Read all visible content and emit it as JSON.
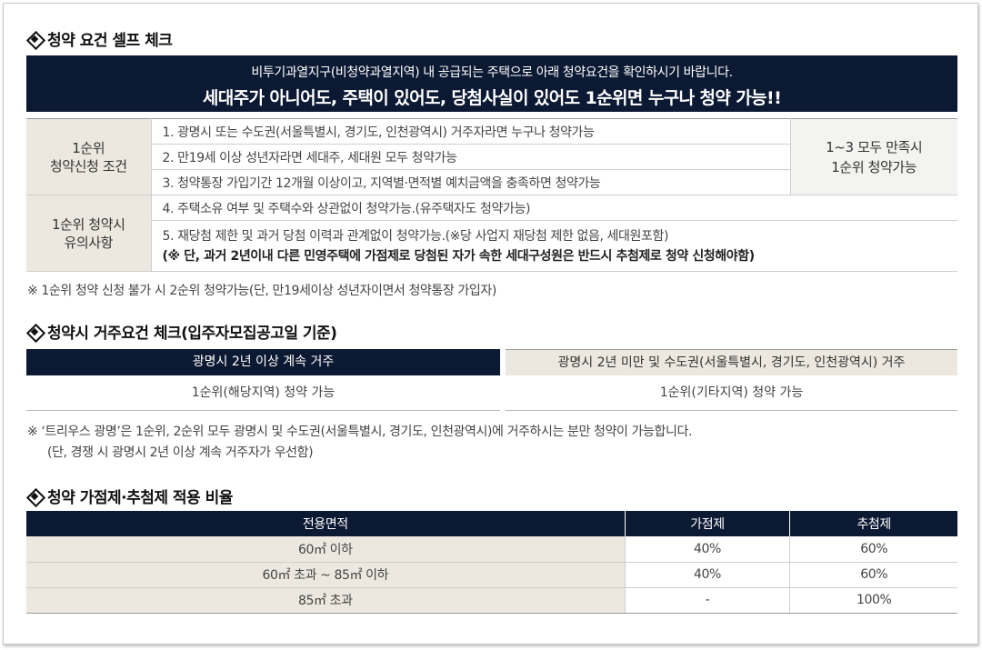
{
  "section1": {
    "title": "청약 요건 셀프 체크",
    "banner_line1": "비투기과열지구(비청약과열지역) 내 공급되는 주택으로 아래 청약요건을 확인하시기 바랍니다.",
    "banner_line2": "세대주가 아니어도, 주택이 있어도, 당첨사실이 있어도 1순위면 누구나 청약 가능!!",
    "condition_head_1": "1순위",
    "condition_head_2": "청약신청 조건",
    "conditions": [
      "1. 광명시 또는 수도권(서울특별시, 경기도, 인천광역시) 거주자라면 누구나 청약가능",
      "2. 만19세 이상 성년자라면 세대주, 세대원 모두 청약가능",
      "3. 청약통장 가입기간 12개월 이상이고, 지역별·면적별 예치금액을 충족하면 청약가능"
    ],
    "side_1": "1~3 모두 만족시",
    "side_2": "1순위 청약가능",
    "caution_head_1": "1순위 청약시",
    "caution_head_2": "유의사항",
    "cautions": [
      "4. 주택소유 여부 및 주택수와 상관없이 청약가능.(유주택자도 청약가능)",
      "5. 재당첨 제한 및 과거 당첨 이력과 관계없이 청약가능.(※당 사업지 재당첨 제한 없음, 세대원포함)"
    ],
    "caution_bold": "(※ 단, 과거 2년이내 다른 민영주택에 가점제로 당첨된 자가 속한 세대구성원은 반드시 추첨제로 청약 신청해야함)",
    "note": "※ 1순위 청약 신청 불가 시 2순위 청약가능(단, 만19세이상 성년자이면서 청약통장 가입자)"
  },
  "section2": {
    "title": "청약시 거주요건 체크(입주자모집공고일 기준)",
    "col1_head": "광명시 2년 이상 계속 거주",
    "col2_head": "광명시 2년 미만 및 수도권(서울특별시, 경기도, 인천광역시) 거주",
    "col1_value": "1순위(해당지역) 청약 가능",
    "col2_value": "1순위(기타지역) 청약 가능",
    "note_1": "※ ‘트리우스 광명’은 1순위, 2순위 모두 광명시 및 수도권(서울특별시, 경기도, 인천광역시)에 거주하시는 분만 청약이 가능합니다.",
    "note_2": "(단, 경쟁 시 광명시 2년 이상 계속 거주자가 우선함)"
  },
  "section3": {
    "title": "청약 가점제·추첨제 적용 비율",
    "headers": [
      "전용면적",
      "가점제",
      "추첨제"
    ],
    "rows": [
      [
        "60㎡ 이하",
        "40%",
        "60%"
      ],
      [
        "60㎡ 초과 ~ 85㎡ 이하",
        "40%",
        "60%"
      ],
      [
        "85㎡ 초과",
        "-",
        "100%"
      ]
    ]
  }
}
